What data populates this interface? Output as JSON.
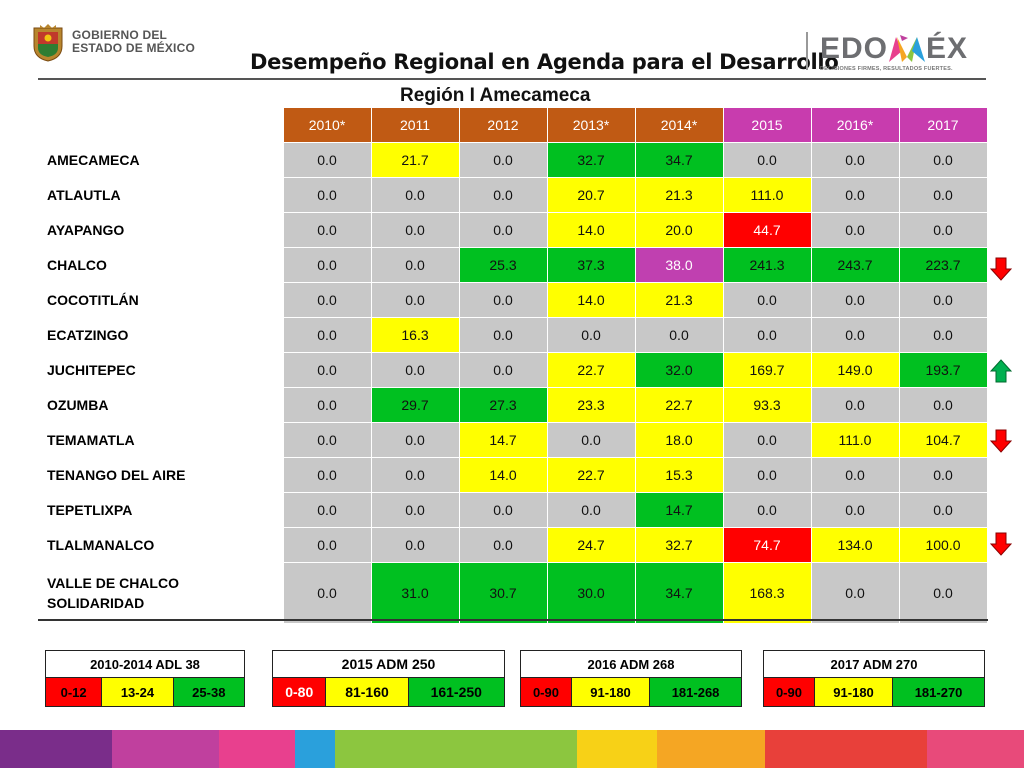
{
  "header": {
    "gov_line1": "GOBIERNO DEL",
    "gov_line2": "ESTADO DE MÉXICO",
    "title": "Desempeño Regional en Agenda para el Desarrollo",
    "subtitle": "Región I Amecameca",
    "brand_pre": "EDO",
    "brand_post": "ÉX",
    "brand_tagline": "DECISIONES FIRMES, RESULTADOS FUERTES."
  },
  "table": {
    "years": [
      "2010*",
      "2011",
      "2012",
      "2013*",
      "2014*",
      "2015",
      "2016*",
      "2017"
    ],
    "rows": [
      {
        "name": "AMECAMECA",
        "values": [
          "0.0",
          "21.7",
          "0.0",
          "32.7",
          "34.7",
          "0.0",
          "0.0",
          "0.0"
        ],
        "colors": [
          "gray",
          "yel",
          "gray",
          "grn",
          "grn",
          "gray",
          "gray",
          "gray"
        ]
      },
      {
        "name": "ATLAUTLA",
        "values": [
          "0.0",
          "0.0",
          "0.0",
          "20.7",
          "21.3",
          "111.0",
          "0.0",
          "0.0"
        ],
        "colors": [
          "gray",
          "gray",
          "gray",
          "yel",
          "yel",
          "yel",
          "gray",
          "gray"
        ]
      },
      {
        "name": "AYAPANGO",
        "values": [
          "0.0",
          "0.0",
          "0.0",
          "14.0",
          "20.0",
          "44.7",
          "0.0",
          "0.0"
        ],
        "colors": [
          "gray",
          "gray",
          "gray",
          "yel",
          "yel",
          "red",
          "gray",
          "gray"
        ]
      },
      {
        "name": "CHALCO",
        "values": [
          "0.0",
          "0.0",
          "25.3",
          "37.3",
          "38.0",
          "241.3",
          "243.7",
          "223.7"
        ],
        "colors": [
          "gray",
          "gray",
          "grn",
          "grn",
          "mag",
          "grn",
          "grn",
          "grn"
        ]
      },
      {
        "name": "COCOTITLÁN",
        "values": [
          "0.0",
          "0.0",
          "0.0",
          "14.0",
          "21.3",
          "0.0",
          "0.0",
          "0.0"
        ],
        "colors": [
          "gray",
          "gray",
          "gray",
          "yel",
          "yel",
          "gray",
          "gray",
          "gray"
        ]
      },
      {
        "name": "ECATZINGO",
        "values": [
          "0.0",
          "16.3",
          "0.0",
          "0.0",
          "0.0",
          "0.0",
          "0.0",
          "0.0"
        ],
        "colors": [
          "gray",
          "yel",
          "gray",
          "gray",
          "gray",
          "gray",
          "gray",
          "gray"
        ]
      },
      {
        "name": "JUCHITEPEC",
        "values": [
          "0.0",
          "0.0",
          "0.0",
          "22.7",
          "32.0",
          "169.7",
          "149.0",
          "193.7"
        ],
        "colors": [
          "gray",
          "gray",
          "gray",
          "yel",
          "grn",
          "yel",
          "yel",
          "grn"
        ]
      },
      {
        "name": "OZUMBA",
        "values": [
          "0.0",
          "29.7",
          "27.3",
          "23.3",
          "22.7",
          "93.3",
          "0.0",
          "0.0"
        ],
        "colors": [
          "gray",
          "grn",
          "grn",
          "yel",
          "yel",
          "yel",
          "gray",
          "gray"
        ]
      },
      {
        "name": "TEMAMATLA",
        "values": [
          "0.0",
          "0.0",
          "14.7",
          "0.0",
          "18.0",
          "0.0",
          "111.0",
          "104.7"
        ],
        "colors": [
          "gray",
          "gray",
          "yel",
          "gray",
          "yel",
          "gray",
          "yel",
          "yel"
        ]
      },
      {
        "name": "TENANGO DEL AIRE",
        "values": [
          "0.0",
          "0.0",
          "14.0",
          "22.7",
          "15.3",
          "0.0",
          "0.0",
          "0.0"
        ],
        "colors": [
          "gray",
          "gray",
          "yel",
          "yel",
          "yel",
          "gray",
          "gray",
          "gray"
        ]
      },
      {
        "name": "TEPETLIXPA",
        "values": [
          "0.0",
          "0.0",
          "0.0",
          "0.0",
          "14.7",
          "0.0",
          "0.0",
          "0.0"
        ],
        "colors": [
          "gray",
          "gray",
          "gray",
          "gray",
          "grn",
          "gray",
          "gray",
          "gray"
        ]
      },
      {
        "name": "TLALMANALCO",
        "values": [
          "0.0",
          "0.0",
          "0.0",
          "24.7",
          "32.7",
          "74.7",
          "134.0",
          "100.0"
        ],
        "colors": [
          "gray",
          "gray",
          "gray",
          "yel",
          "yel",
          "red",
          "yel",
          "yel"
        ]
      },
      {
        "name": "VALLE DE CHALCO SOLIDARIDAD",
        "name_line1": "VALLE DE CHALCO",
        "name_line2": "SOLIDARIDAD",
        "values": [
          "0.0",
          "31.0",
          "30.7",
          "30.0",
          "34.7",
          "168.3",
          "0.0",
          "0.0"
        ],
        "colors": [
          "gray",
          "grn",
          "grn",
          "grn",
          "grn",
          "yel",
          "gray",
          "gray"
        ]
      }
    ]
  },
  "trend_arrows": [
    {
      "row": "CHALCO",
      "direction": "down",
      "color": "#ff0000"
    },
    {
      "row": "JUCHITEPEC",
      "direction": "up",
      "color": "#00b050"
    },
    {
      "row": "TEMAMATLA",
      "direction": "down",
      "color": "#ff0000"
    },
    {
      "row": "TLALMANALCO",
      "direction": "down",
      "color": "#ff0000"
    }
  ],
  "legends": [
    {
      "title": "2010-2014 ADL 38",
      "ranges": [
        "0-12",
        "13-24",
        "25-38"
      ]
    },
    {
      "title": "2015 ADM 250",
      "ranges": [
        "0-80",
        "81-160",
        "161-250"
      ]
    },
    {
      "title": "2016 ADM 268",
      "ranges": [
        "0-90",
        "91-180",
        "181-268"
      ]
    },
    {
      "title": "2017 ADM 270",
      "ranges": [
        "0-90",
        "91-180",
        "181-270"
      ]
    }
  ],
  "colors": {
    "red": "#ff0000",
    "yellow": "#ffff00",
    "green": "#00c020",
    "gray": "#c8c8c8",
    "header_orange": "#c05a14",
    "header_magenta": "#c83cae"
  },
  "stripe_colors": [
    "#7a2d8a",
    "#c0409e",
    "#e8408e",
    "#2aa0dc",
    "#8cc63f",
    "#f7d117",
    "#f5a623",
    "#e8403a",
    "#e84a7a"
  ]
}
